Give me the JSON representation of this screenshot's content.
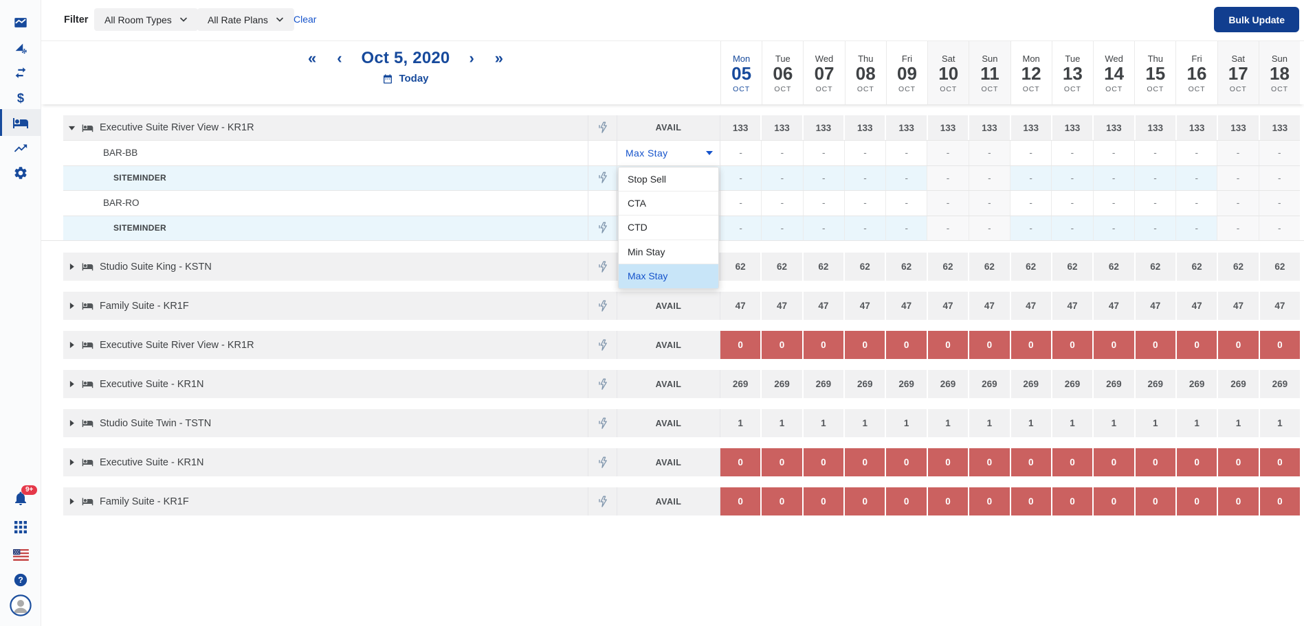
{
  "colors": {
    "navy": "#174a9c",
    "link_blue": "#1553cb",
    "bulk_button_bg": "#113e8f",
    "sold_out_red": "#cb6160",
    "badge_red": "#e5394a",
    "group_row_gray": "#f1f1f2",
    "channel_row_blue": "#eaf6fc",
    "menu_highlight_blue": "#c8e5f8"
  },
  "sidebar": {
    "top_icons": [
      {
        "icon": "area-chart-icon",
        "selected": false
      },
      {
        "icon": "rate-shopper-icon",
        "selected": false
      },
      {
        "icon": "swap-arrows-icon",
        "selected": false
      },
      {
        "icon": "pricing-dollar-icon",
        "selected": false
      },
      {
        "icon": "inventory-bed-icon",
        "selected": true
      },
      {
        "icon": "trending-up-icon",
        "selected": false
      },
      {
        "icon": "settings-gear-icon",
        "selected": false
      }
    ],
    "notification_badge": "9+",
    "bottom_icons": [
      {
        "icon": "bell-icon",
        "badge": "9+"
      },
      {
        "icon": "apps-grid-icon"
      },
      {
        "icon": "us-flag-icon"
      },
      {
        "icon": "help-icon"
      },
      {
        "icon": "avatar"
      }
    ]
  },
  "filter_bar": {
    "label": "Filter",
    "room_types_filter": "All Room Types",
    "rate_plans_filter": "All Rate Plans",
    "clear_link": "Clear",
    "bulk_update_button": "Bulk Update"
  },
  "date_nav": {
    "title": "Oct 5, 2020",
    "today_label": "Today"
  },
  "calendar_days": [
    {
      "dow": "Mon",
      "day": "05",
      "month": "OCT",
      "today": true,
      "weekend": false
    },
    {
      "dow": "Tue",
      "day": "06",
      "month": "OCT",
      "today": false,
      "weekend": false
    },
    {
      "dow": "Wed",
      "day": "07",
      "month": "OCT",
      "today": false,
      "weekend": false
    },
    {
      "dow": "Thu",
      "day": "08",
      "month": "OCT",
      "today": false,
      "weekend": false
    },
    {
      "dow": "Fri",
      "day": "09",
      "month": "OCT",
      "today": false,
      "weekend": false
    },
    {
      "dow": "Sat",
      "day": "10",
      "month": "OCT",
      "today": false,
      "weekend": true
    },
    {
      "dow": "Sun",
      "day": "11",
      "month": "OCT",
      "today": false,
      "weekend": true
    },
    {
      "dow": "Mon",
      "day": "12",
      "month": "OCT",
      "today": false,
      "weekend": false
    },
    {
      "dow": "Tue",
      "day": "13",
      "month": "OCT",
      "today": false,
      "weekend": false
    },
    {
      "dow": "Wed",
      "day": "14",
      "month": "OCT",
      "today": false,
      "weekend": false
    },
    {
      "dow": "Thu",
      "day": "15",
      "month": "OCT",
      "today": false,
      "weekend": false
    },
    {
      "dow": "Fri",
      "day": "16",
      "month": "OCT",
      "today": false,
      "weekend": false
    },
    {
      "dow": "Sat",
      "day": "17",
      "month": "OCT",
      "today": false,
      "weekend": true
    },
    {
      "dow": "Sun",
      "day": "18",
      "month": "OCT",
      "today": false,
      "weekend": true
    }
  ],
  "grid": {
    "measure_label": "AVAIL",
    "expanded_group": {
      "name": "Executive Suite River View - KR1R",
      "avail_values": [
        "133",
        "133",
        "133",
        "133",
        "133",
        "133",
        "133",
        "133",
        "133",
        "133",
        "133",
        "133",
        "133",
        "133"
      ],
      "subrows": [
        {
          "label": "BAR-BB",
          "kind": "rate",
          "control": "select",
          "values": [
            "-",
            "-",
            "-",
            "-",
            "-",
            "-",
            "-",
            "-",
            "-",
            "-",
            "-",
            "-",
            "-",
            "-"
          ]
        },
        {
          "label": "SITEMINDER",
          "kind": "channel",
          "values": [
            "-",
            "-",
            "-",
            "-",
            "-",
            "-",
            "-",
            "-",
            "-",
            "-",
            "-",
            "-",
            "-",
            "-"
          ]
        },
        {
          "label": "BAR-RO",
          "kind": "rate",
          "values": [
            "-",
            "-",
            "-",
            "-",
            "-",
            "-",
            "-",
            "-",
            "-",
            "-",
            "-",
            "-",
            "-",
            "-"
          ]
        },
        {
          "label": "SITEMINDER",
          "kind": "channel",
          "values": [
            "-",
            "-",
            "-",
            "-",
            "-",
            "-",
            "-",
            "-",
            "-",
            "-",
            "-",
            "-",
            "-",
            "-"
          ]
        }
      ]
    },
    "collapsed_groups": [
      {
        "name": "Studio Suite King - KSTN",
        "sold_out": false,
        "values": [
          "62",
          "62",
          "62",
          "62",
          "62",
          "62",
          "62",
          "62",
          "62",
          "62",
          "62",
          "62",
          "62",
          "62"
        ]
      },
      {
        "name": "Family Suite - KR1F",
        "sold_out": false,
        "values": [
          "47",
          "47",
          "47",
          "47",
          "47",
          "47",
          "47",
          "47",
          "47",
          "47",
          "47",
          "47",
          "47",
          "47"
        ]
      },
      {
        "name": "Executive Suite River View - KR1R",
        "sold_out": true,
        "values": [
          "0",
          "0",
          "0",
          "0",
          "0",
          "0",
          "0",
          "0",
          "0",
          "0",
          "0",
          "0",
          "0",
          "0"
        ]
      },
      {
        "name": "Executive Suite - KR1N",
        "sold_out": false,
        "values": [
          "269",
          "269",
          "269",
          "269",
          "269",
          "269",
          "269",
          "269",
          "269",
          "269",
          "269",
          "269",
          "269",
          "269"
        ]
      },
      {
        "name": "Studio Suite Twin - TSTN",
        "sold_out": false,
        "values": [
          "1",
          "1",
          "1",
          "1",
          "1",
          "1",
          "1",
          "1",
          "1",
          "1",
          "1",
          "1",
          "1",
          "1"
        ]
      },
      {
        "name": "Executive Suite - KR1N",
        "sold_out": true,
        "values": [
          "0",
          "0",
          "0",
          "0",
          "0",
          "0",
          "0",
          "0",
          "0",
          "0",
          "0",
          "0",
          "0",
          "0"
        ]
      },
      {
        "name": "Family Suite - KR1F",
        "sold_out": true,
        "values": [
          "0",
          "0",
          "0",
          "0",
          "0",
          "0",
          "0",
          "0",
          "0",
          "0",
          "0",
          "0",
          "0",
          "0"
        ]
      }
    ]
  },
  "restriction_dropdown": {
    "selected": "Max Stay",
    "options": [
      {
        "label": "Stop Sell",
        "selected": false
      },
      {
        "label": "CTA",
        "selected": false
      },
      {
        "label": "CTD",
        "selected": false
      },
      {
        "label": "Min Stay",
        "selected": false
      },
      {
        "label": "Max Stay",
        "selected": true
      }
    ]
  }
}
